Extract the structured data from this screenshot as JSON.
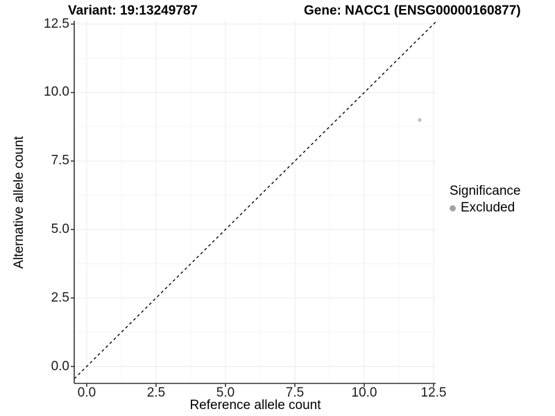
{
  "chart_data": {
    "type": "scatter",
    "title_left": "Variant: 19:13249787",
    "title_right": "Gene: NACC1 (ENSG00000160877)",
    "xlabel": "Reference allele count",
    "ylabel": "Alternative allele count",
    "xlim": [
      -0.45,
      12.575
    ],
    "ylim": [
      -0.62,
      12.62
    ],
    "x_ticks": {
      "values": [
        0,
        2.5,
        5,
        7.5,
        10,
        12.5
      ],
      "labels": [
        "0.0",
        "2.5",
        "5.0",
        "7.5",
        "10.0",
        "12.5"
      ]
    },
    "y_ticks": {
      "values": [
        0,
        2.5,
        5,
        7.5,
        10,
        12.5
      ],
      "labels": [
        "0.0",
        "2.5",
        "5.0",
        "7.5",
        "10.0",
        "12.5"
      ]
    },
    "x_minor_ticks": [
      1.25,
      3.75,
      6.25,
      8.75,
      11.25
    ],
    "y_minor_ticks": [
      1.25,
      3.75,
      6.25,
      8.75,
      11.25
    ],
    "grid": {
      "enabled": true,
      "major_color": "#ebebeb",
      "minor_color": "#f5f5f5"
    },
    "axis_color": "#333333",
    "identity_line": {
      "slope": 1,
      "intercept": 0,
      "style": "dashed",
      "color": "#000000"
    },
    "series": [
      {
        "name": "Excluded",
        "color": "#bdbdbd",
        "point_radius": 2.6,
        "points": [
          {
            "x": 12,
            "y": 9
          }
        ]
      }
    ],
    "legend": {
      "title": "Significance",
      "position": "right",
      "items": [
        {
          "label": "Excluded",
          "color": "#a3a3a3",
          "marker": "circle-icon"
        }
      ]
    }
  }
}
